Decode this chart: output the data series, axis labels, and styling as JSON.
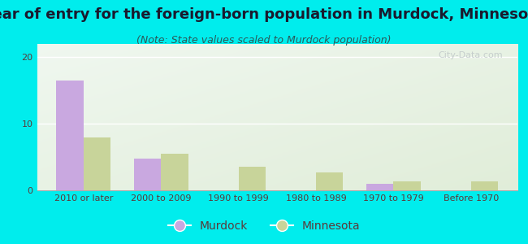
{
  "title": "Year of entry for the foreign-born population in Murdock, Minnesota",
  "subtitle": "(Note: State values scaled to Murdock population)",
  "categories": [
    "2010 or later",
    "2000 to 2009",
    "1990 to 1999",
    "1980 to 1989",
    "1970 to 1979",
    "Before 1970"
  ],
  "murdock_values": [
    16.5,
    4.8,
    0,
    0,
    1.0,
    0
  ],
  "minnesota_values": [
    8.0,
    5.5,
    3.5,
    2.7,
    1.4,
    1.4
  ],
  "murdock_color": "#c9a8e0",
  "minnesota_color": "#c8d49a",
  "background_outer": "#00eded",
  "ylim": [
    0,
    22
  ],
  "yticks": [
    0,
    10,
    20
  ],
  "bar_width": 0.35,
  "title_fontsize": 13,
  "subtitle_fontsize": 9,
  "tick_fontsize": 8,
  "legend_fontsize": 10,
  "title_color": "#1a1a2e",
  "subtitle_color": "#2a5a5a",
  "tick_color": "#5a3a3a"
}
